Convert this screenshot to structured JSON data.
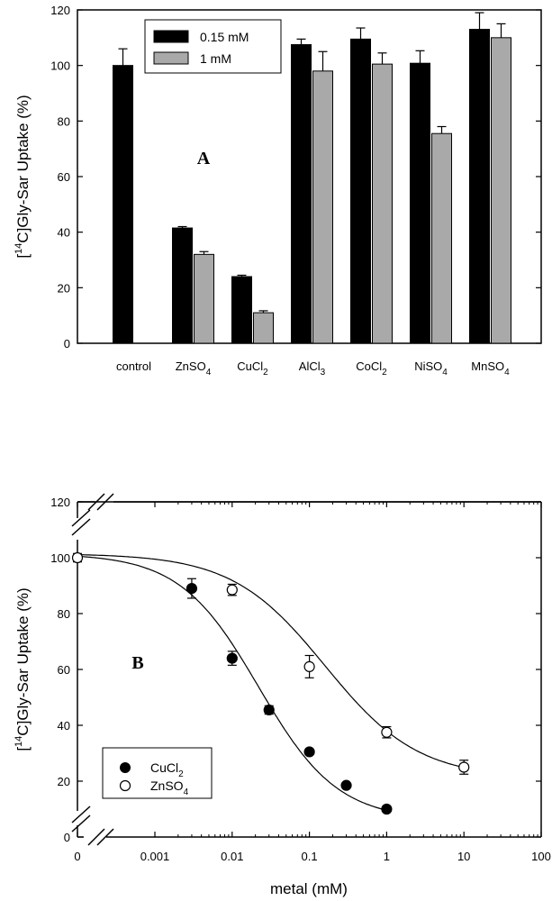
{
  "chart_data": [
    {
      "type": "bar",
      "panel_label": "A",
      "ylabel": "[14C]Gly-Sar Uptake (%)",
      "ylabel_parts": {
        "pre": "[",
        "sup": "14",
        "post": "C]Gly-Sar Uptake (%)"
      },
      "ylim": [
        0,
        120
      ],
      "yticks": [
        "0",
        "20",
        "40",
        "60",
        "80",
        "100",
        "120"
      ],
      "categories": [
        {
          "pre": "control",
          "sub": ""
        },
        {
          "pre": "ZnSO",
          "sub": "4"
        },
        {
          "pre": "CuCl",
          "sub": "2"
        },
        {
          "pre": "AlCl",
          "sub": "3"
        },
        {
          "pre": "CoCl",
          "sub": "2"
        },
        {
          "pre": "NiSO",
          "sub": "4"
        },
        {
          "pre": "MnSO",
          "sub": "4"
        }
      ],
      "series": [
        {
          "name": "0.15 mM",
          "color": "#000000",
          "values": [
            100,
            41.5,
            24,
            107.5,
            109.5,
            100.8,
            113
          ],
          "errors": [
            6,
            0.5,
            0.5,
            2,
            4,
            4.5,
            6
          ]
        },
        {
          "name": "1 mM",
          "color": "#a9a9a9",
          "values": [
            null,
            32,
            11,
            98,
            100.5,
            75.5,
            110
          ],
          "errors": [
            null,
            1,
            0.7,
            7,
            4,
            2.5,
            5
          ]
        }
      ]
    },
    {
      "type": "scatter",
      "panel_label": "B",
      "xlabel": "metal (mM)",
      "ylabel": "[14C]Gly-Sar Uptake (%)",
      "ylabel_parts": {
        "pre": "[",
        "sup": "14",
        "post": "C]Gly-Sar Uptake (%)"
      },
      "xscale": "log",
      "xlim": [
        0.0001,
        100
      ],
      "ylim": [
        0,
        120
      ],
      "xticks": [
        "0",
        "0.001",
        "0.01",
        "0.1",
        "1",
        "10",
        "100"
      ],
      "yticks": [
        "0",
        "20",
        "40",
        "60",
        "80",
        "100",
        "120"
      ],
      "control_point": {
        "x": 0,
        "y": 100,
        "err": 1.5
      },
      "series": [
        {
          "name": {
            "pre": "CuCl",
            "sub": "2"
          },
          "marker": "filled-circle",
          "x": [
            0.003,
            0.01,
            0.03,
            0.1,
            0.3,
            1
          ],
          "y": [
            89,
            64,
            45.5,
            30.5,
            18.5,
            10
          ],
          "err": [
            3.5,
            2.5,
            1.5,
            0.5,
            0.5,
            0.5
          ],
          "fit": {
            "top": 101.5,
            "bottom": 6,
            "ic50": 0.022,
            "hill": 0.85
          }
        },
        {
          "name": {
            "pre": "ZnSO",
            "sub": "4"
          },
          "marker": "open-circle",
          "x": [
            0.01,
            0.1,
            1,
            10
          ],
          "y": [
            88.5,
            61,
            37.5,
            25
          ],
          "err": [
            2,
            4,
            2,
            2.5
          ],
          "fit": {
            "top": 101.5,
            "bottom": 21,
            "ic50": 0.16,
            "hill": 0.72
          }
        }
      ]
    }
  ]
}
